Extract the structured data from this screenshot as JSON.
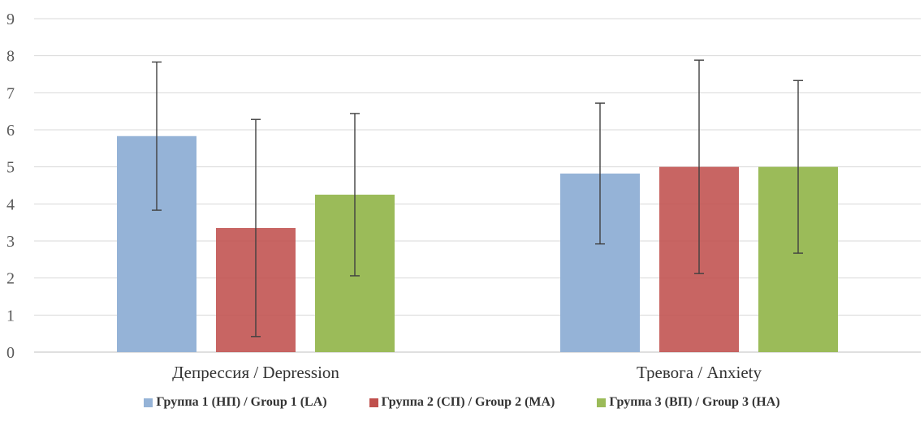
{
  "chart_data": {
    "type": "bar",
    "categories": [
      "Депрессия / Depression",
      "Тревога / Anxiety"
    ],
    "series": [
      {
        "name": "Группа 1 (НП) / Group 1 (LA)",
        "color": "#95b3d7",
        "values": [
          5.83,
          4.82
        ],
        "error": [
          2.0,
          1.9
        ]
      },
      {
        "name": "Группа 2 (СП) / Group 2 (MA)",
        "color": "#c0504d",
        "values": [
          3.35,
          5.0
        ],
        "error": [
          2.93,
          2.88
        ]
      },
      {
        "name": "Группа 3 (ВП) / Group 3 (HA)",
        "color": "#9bbb59",
        "values": [
          4.25,
          5.0
        ],
        "error": [
          2.19,
          2.33
        ]
      }
    ],
    "yticks": [
      "0",
      "1",
      "2",
      "3",
      "4",
      "5",
      "6",
      "7",
      "8",
      "9"
    ],
    "ylim": [
      0,
      9
    ],
    "grid": true,
    "legend_position": "bottom"
  }
}
